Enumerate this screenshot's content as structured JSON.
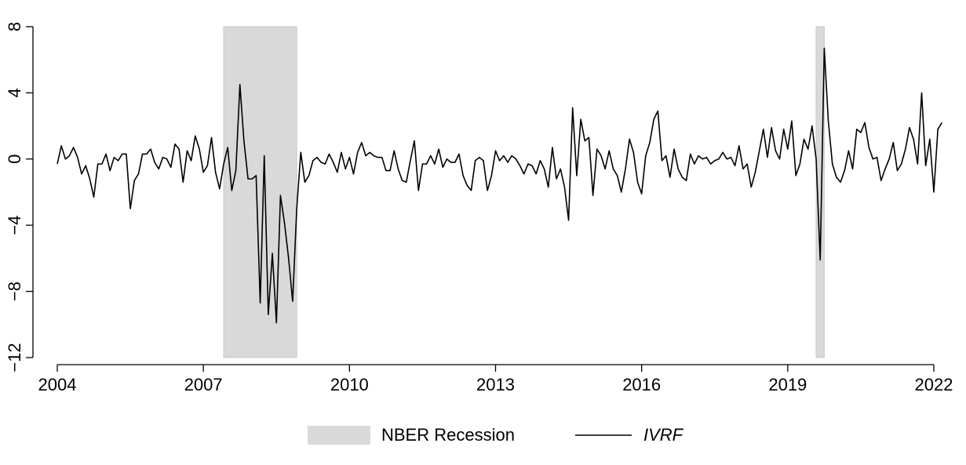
{
  "chart_data": {
    "type": "line",
    "x": [
      2004,
      2004.083,
      2004.167,
      2004.25,
      2004.333,
      2004.417,
      2004.5,
      2004.583,
      2004.667,
      2004.75,
      2004.833,
      2004.917,
      2005,
      2005.083,
      2005.167,
      2005.25,
      2005.333,
      2005.417,
      2005.5,
      2005.583,
      2005.667,
      2005.75,
      2005.833,
      2005.917,
      2006,
      2006.083,
      2006.167,
      2006.25,
      2006.333,
      2006.417,
      2006.5,
      2006.583,
      2006.667,
      2006.75,
      2006.833,
      2006.917,
      2007,
      2007.083,
      2007.167,
      2007.25,
      2007.333,
      2007.417,
      2007.5,
      2007.583,
      2007.667,
      2007.75,
      2007.833,
      2007.917,
      2008,
      2008.083,
      2008.167,
      2008.25,
      2008.333,
      2008.417,
      2008.5,
      2008.583,
      2008.667,
      2008.75,
      2008.833,
      2008.917,
      2009,
      2009.083,
      2009.167,
      2009.25,
      2009.333,
      2009.417,
      2009.5,
      2009.583,
      2009.667,
      2009.75,
      2009.833,
      2009.917,
      2010,
      2010.083,
      2010.167,
      2010.25,
      2010.333,
      2010.417,
      2010.5,
      2010.583,
      2010.667,
      2010.75,
      2010.833,
      2010.917,
      2011,
      2011.083,
      2011.167,
      2011.25,
      2011.333,
      2011.417,
      2011.5,
      2011.583,
      2011.667,
      2011.75,
      2011.833,
      2011.917,
      2012,
      2012.083,
      2012.167,
      2012.25,
      2012.333,
      2012.417,
      2012.5,
      2012.583,
      2012.667,
      2012.75,
      2012.833,
      2012.917,
      2013,
      2013.083,
      2013.167,
      2013.25,
      2013.333,
      2013.417,
      2013.5,
      2013.583,
      2013.667,
      2013.75,
      2013.833,
      2013.917,
      2014,
      2014.083,
      2014.167,
      2014.25,
      2014.333,
      2014.417,
      2014.5,
      2014.583,
      2014.667,
      2014.75,
      2014.833,
      2014.917,
      2015,
      2015.083,
      2015.167,
      2015.25,
      2015.333,
      2015.417,
      2015.5,
      2015.583,
      2015.667,
      2015.75,
      2015.833,
      2015.917,
      2016,
      2016.083,
      2016.167,
      2016.25,
      2016.333,
      2016.417,
      2016.5,
      2016.583,
      2016.667,
      2016.75,
      2016.833,
      2016.917,
      2017,
      2017.083,
      2017.167,
      2017.25,
      2017.333,
      2017.417,
      2017.5,
      2017.583,
      2017.667,
      2017.75,
      2017.833,
      2017.917,
      2018,
      2018.083,
      2018.167,
      2018.25,
      2018.333,
      2018.417,
      2018.5,
      2018.583,
      2018.667,
      2018.75,
      2018.833,
      2018.917,
      2019,
      2019.083,
      2019.167,
      2019.25,
      2019.333,
      2019.417,
      2019.5,
      2019.583,
      2019.667,
      2019.75,
      2019.833,
      2019.917,
      2020,
      2020.083,
      2020.167,
      2020.25,
      2020.333,
      2020.417,
      2020.5,
      2020.583,
      2020.667,
      2020.75,
      2020.833,
      2020.917,
      2021,
      2021.083,
      2021.167,
      2021.25,
      2021.333,
      2021.417,
      2021.5,
      2021.583,
      2021.667,
      2021.75,
      2021.833,
      2021.917,
      2022,
      2022.083,
      2022.167
    ],
    "series": [
      {
        "name": "IVRF",
        "color": "#000000",
        "values": [
          -0.3,
          0.8,
          0.0,
          0.2,
          0.7,
          0.1,
          -0.9,
          -0.4,
          -1.2,
          -2.3,
          -0.3,
          -0.3,
          0.3,
          -0.7,
          0.1,
          -0.1,
          0.3,
          0.3,
          -3.0,
          -1.3,
          -0.9,
          0.3,
          0.3,
          0.6,
          -0.2,
          -0.6,
          0.1,
          0.0,
          -0.5,
          0.9,
          0.6,
          -1.4,
          0.5,
          -0.1,
          1.4,
          0.6,
          -0.8,
          -0.4,
          1.3,
          -0.8,
          -1.8,
          -0.3,
          0.7,
          -1.9,
          -0.7,
          4.5,
          1.1,
          -1.2,
          -1.2,
          -1.0,
          -8.7,
          0.2,
          -9.4,
          -5.7,
          -9.9,
          -2.2,
          -3.9,
          -6.0,
          -8.6,
          -3.0,
          0.4,
          -1.4,
          -1.0,
          -0.1,
          0.1,
          -0.2,
          -0.3,
          0.3,
          -0.2,
          -0.8,
          0.4,
          -0.6,
          0.1,
          -0.9,
          0.4,
          1.0,
          0.2,
          0.4,
          0.2,
          0.1,
          0.1,
          -0.7,
          -0.7,
          0.5,
          -0.6,
          -1.3,
          -1.4,
          -0.1,
          1.1,
          -1.9,
          -0.3,
          -0.3,
          0.2,
          -0.3,
          0.6,
          -0.5,
          0.0,
          -0.2,
          -0.2,
          0.3,
          -1.0,
          -1.6,
          -1.9,
          -0.1,
          0.1,
          -0.1,
          -1.9,
          -1.0,
          0.5,
          -0.1,
          0.2,
          -0.2,
          0.2,
          0.0,
          -0.4,
          -0.9,
          -0.3,
          -0.4,
          -0.9,
          -0.1,
          -0.6,
          -1.7,
          0.7,
          -1.2,
          -0.6,
          -1.7,
          -3.7,
          3.1,
          -1.0,
          2.4,
          1.1,
          1.3,
          -2.2,
          0.6,
          0.2,
          -0.6,
          0.5,
          -0.6,
          -1.0,
          -2.0,
          -0.6,
          1.2,
          0.4,
          -1.4,
          -2.1,
          0.2,
          1.0,
          2.4,
          2.9,
          -0.1,
          0.2,
          -1.1,
          0.6,
          -0.6,
          -1.1,
          -1.3,
          0.3,
          -0.3,
          0.2,
          0.0,
          0.1,
          -0.3,
          -0.1,
          0.0,
          0.4,
          0.0,
          0.1,
          -0.4,
          0.8,
          -0.6,
          -0.3,
          -1.7,
          -0.8,
          0.5,
          1.8,
          0.1,
          1.9,
          0.5,
          0.0,
          1.8,
          0.6,
          2.3,
          -1.0,
          -0.3,
          1.2,
          0.6,
          2.0,
          0.0,
          -6.1,
          6.7,
          2.3,
          -0.3,
          -1.1,
          -1.4,
          -0.7,
          0.5,
          -0.6,
          1.8,
          1.6,
          2.2,
          0.7,
          0.0,
          0.1,
          -1.3,
          -0.6,
          0.0,
          1.0,
          -0.7,
          -0.3,
          0.6,
          1.9,
          1.2,
          -0.3,
          4.0,
          -0.4,
          1.2,
          -2.0,
          1.8,
          2.2
        ]
      }
    ],
    "shading": {
      "name": "NBER Recession",
      "color": "#d9d9d9",
      "spans": [
        [
          2007.417,
          2008.917
        ],
        [
          2019.583,
          2019.75
        ]
      ]
    },
    "xlim": [
      2004,
      2022
    ],
    "xticks": [
      2004,
      2007,
      2010,
      2013,
      2016,
      2019,
      2022
    ],
    "ylim": [
      -12,
      8
    ],
    "yticks": [
      {
        "value": -12,
        "label": "−12"
      },
      {
        "value": -8,
        "label": "−8"
      },
      {
        "value": -4,
        "label": "−4"
      },
      0,
      4,
      8
    ],
    "legend": "bottom"
  }
}
